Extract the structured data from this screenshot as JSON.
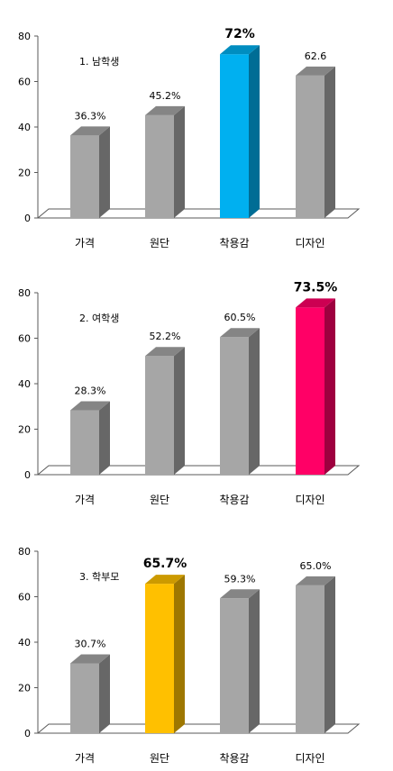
{
  "chart_data": [
    {
      "type": "bar",
      "title": "1. 남학생",
      "categories": [
        "가격",
        "원단",
        "착용감",
        "디자인"
      ],
      "values": [
        36.3,
        45.2,
        72,
        62.6
      ],
      "value_labels": [
        "36.3%",
        "45.2%",
        "72%",
        "62.6"
      ],
      "highlight_index": 2,
      "highlight_color": "#00b0f0",
      "bar_color": "#a6a6a6",
      "ylim": [
        0,
        80
      ],
      "yticks": [
        "0",
        "20",
        "40",
        "60",
        "80"
      ],
      "grid": false,
      "style": "3d-column"
    },
    {
      "type": "bar",
      "title": "2. 여학생",
      "categories": [
        "가격",
        "원단",
        "착용감",
        "디자인"
      ],
      "values": [
        28.3,
        52.2,
        60.5,
        73.5
      ],
      "value_labels": [
        "28.3%",
        "52.2%",
        "60.5%",
        "73.5%"
      ],
      "highlight_index": 3,
      "highlight_color": "#ff0066",
      "bar_color": "#a6a6a6",
      "ylim": [
        0,
        80
      ],
      "yticks": [
        "0",
        "20",
        "40",
        "60",
        "80"
      ],
      "grid": false,
      "style": "3d-column"
    },
    {
      "type": "bar",
      "title": "3. 학부모",
      "categories": [
        "가격",
        "원단",
        "착용감",
        "디자인"
      ],
      "values": [
        30.7,
        65.7,
        59.3,
        65.0
      ],
      "value_labels": [
        "30.7%",
        "65.7%",
        "59.3%",
        "65.0%"
      ],
      "highlight_index": 1,
      "highlight_color": "#ffc000",
      "bar_color": "#a6a6a6",
      "ylim": [
        0,
        80
      ],
      "yticks": [
        "0",
        "20",
        "40",
        "60",
        "80"
      ],
      "grid": false,
      "style": "3d-column"
    }
  ]
}
